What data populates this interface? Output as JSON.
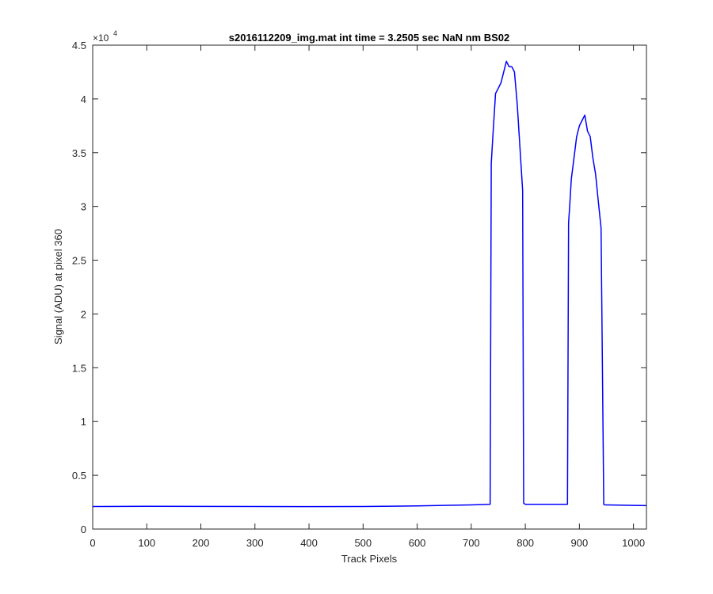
{
  "chart_data": {
    "type": "line",
    "title": "s2016112209_img.mat int time = 3.2505 sec  NaN nm BS02",
    "xlabel": "Track Pixels",
    "ylabel": "Signal (ADU) at pixel 360",
    "xlim": [
      0,
      1024
    ],
    "ylim": [
      0,
      45000
    ],
    "y_exponent_label": "×10",
    "y_exponent_power": "4",
    "xticks": [
      0,
      100,
      200,
      300,
      400,
      500,
      600,
      700,
      800,
      900,
      1000
    ],
    "xtick_labels": [
      "0",
      "100",
      "200",
      "300",
      "400",
      "500",
      "600",
      "700",
      "800",
      "900",
      "1000"
    ],
    "yticks": [
      0,
      5000,
      10000,
      15000,
      20000,
      25000,
      30000,
      35000,
      40000,
      45000
    ],
    "ytick_labels": [
      "0",
      "0.5",
      "1",
      "1.5",
      "2",
      "2.5",
      "3",
      "3.5",
      "4",
      "4.5"
    ],
    "grid": false,
    "series": [
      {
        "color": "#0000ff",
        "x": [
          0,
          100,
          200,
          300,
          400,
          500,
          600,
          700,
          735,
          737,
          740,
          745,
          750,
          755,
          760,
          765,
          770,
          775,
          780,
          785,
          790,
          795,
          797,
          800,
          850,
          878,
          880,
          882,
          885,
          890,
          895,
          900,
          905,
          910,
          915,
          920,
          925,
          930,
          935,
          940,
          945,
          947,
          950,
          1000,
          1024
        ],
        "y": [
          2100,
          2120,
          2110,
          2100,
          2090,
          2100,
          2150,
          2250,
          2300,
          34000,
          36500,
          40500,
          41000,
          41500,
          42500,
          43500,
          43000,
          43000,
          42500,
          39500,
          35500,
          31500,
          2400,
          2300,
          2300,
          2300,
          28500,
          30000,
          32500,
          34500,
          36500,
          37500,
          38000,
          38500,
          37000,
          36500,
          34500,
          33000,
          30500,
          28000,
          2300,
          2250,
          2250,
          2200,
          2180
        ],
        "line_width": 1.5
      }
    ]
  }
}
